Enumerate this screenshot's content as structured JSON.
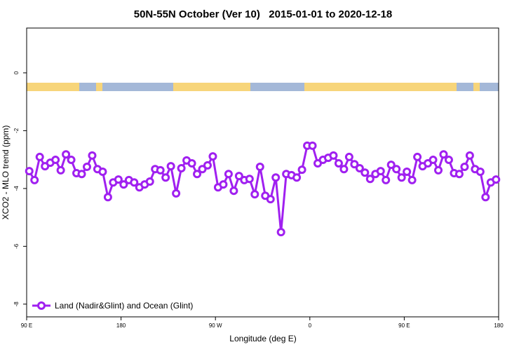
{
  "chart_data": {
    "type": "line",
    "title": "50N-55N October (Ver 10)   2015-01-01 to 2020-12-18",
    "xlabel": "Longitude (deg E)",
    "ylabel": "XCO2 - MLO trend (ppm)",
    "xlim": [
      90,
      540
    ],
    "ylim": [
      -8.44,
      1.55
    ],
    "xticks": [
      {
        "value": 90,
        "label": "90 E"
      },
      180,
      {
        "value": 270,
        "label": "90 W"
      },
      {
        "value": 360,
        "label": "0"
      },
      {
        "value": 450,
        "label": "90 E"
      },
      {
        "value": 540,
        "label": "180"
      }
    ],
    "yticks": [
      0,
      -2,
      -4,
      -6,
      -8
    ],
    "legend": "bottom-left",
    "x": [
      92.5,
      97.5,
      102.5,
      107.5,
      112.5,
      117.5,
      122.5,
      127.5,
      132.5,
      137.5,
      142.5,
      147.5,
      152.5,
      157.5,
      162.5,
      167.5,
      172.5,
      177.5,
      182.5,
      187.5,
      192.5,
      197.5,
      202.5,
      207.5,
      212.5,
      217.5,
      222.5,
      227.5,
      232.5,
      237.5,
      242.5,
      247.5,
      252.5,
      257.5,
      262.5,
      267.5,
      272.5,
      277.5,
      282.5,
      287.5,
      292.5,
      297.5,
      302.5,
      307.5,
      312.5,
      317.5,
      322.5,
      327.5,
      332.5,
      337.5,
      342.5,
      347.5,
      352.5,
      357.5,
      362.5,
      367.5,
      372.5,
      377.5,
      382.5,
      387.5,
      392.5,
      397.5,
      402.5,
      407.5,
      412.5,
      417.5,
      422.5,
      427.5,
      432.5,
      437.5,
      442.5,
      447.5,
      452.5,
      457.5,
      462.5,
      467.5,
      472.5,
      477.5,
      482.5,
      487.5,
      492.5,
      497.5,
      502.5,
      507.5,
      512.5,
      517.5,
      522.5,
      527.5,
      532.5,
      537.5
    ],
    "series": [
      {
        "name": "Land (Nadir&Glint) and Ocean (Glint)",
        "color": "#a020f0",
        "values": [
          -3.4,
          -3.71,
          -2.91,
          -3.23,
          -3.11,
          -3.01,
          -3.37,
          -2.82,
          -3.01,
          -3.47,
          -3.5,
          -3.25,
          -2.86,
          -3.33,
          -3.42,
          -4.3,
          -3.79,
          -3.69,
          -3.86,
          -3.71,
          -3.79,
          -3.96,
          -3.86,
          -3.76,
          -3.33,
          -3.37,
          -3.62,
          -3.23,
          -4.17,
          -3.3,
          -3.03,
          -3.13,
          -3.5,
          -3.33,
          -3.2,
          -2.89,
          -3.96,
          -3.86,
          -3.5,
          -4.08,
          -3.57,
          -3.71,
          -3.67,
          -4.2,
          -3.25,
          -4.25,
          -4.37,
          -3.62,
          -5.51,
          -3.5,
          -3.54,
          -3.62,
          -3.35,
          -2.52,
          -2.52,
          -3.13,
          -3.01,
          -2.94,
          -2.86,
          -3.13,
          -3.33,
          -2.91,
          -3.16,
          -3.3,
          -3.45,
          -3.67,
          -3.5,
          -3.4,
          -3.71,
          -3.18,
          -3.33,
          -3.62,
          -3.42,
          -3.71,
          -2.91,
          -3.23,
          -3.13,
          -3.01,
          -3.37,
          -2.82,
          -3.01,
          -3.47,
          -3.5,
          -3.25,
          -2.86,
          -3.33,
          -3.42,
          -4.3,
          -3.79,
          -3.69
        ]
      }
    ]
  }
}
